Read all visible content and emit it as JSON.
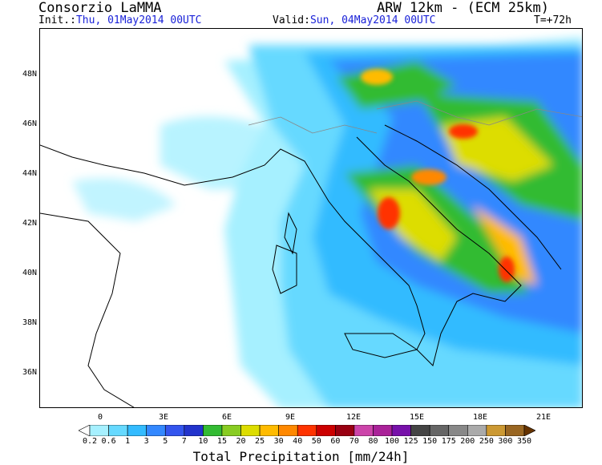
{
  "header": {
    "left_title": "Consorzio LaMMA",
    "right_title": "ARW 12km - (ECM 25km)",
    "init_label": "Init.:",
    "init_value": "Thu, 01May2014 00UTC",
    "valid_label": "Valid:",
    "valid_value": "Sun, 04May2014 00UTC",
    "forecast_step": "T=+72h"
  },
  "map": {
    "lat_labels": [
      "48N",
      "46N",
      "44N",
      "42N",
      "40N",
      "38N",
      "36N"
    ],
    "lon_labels": [
      "0",
      "3E",
      "6E",
      "9E",
      "12E",
      "15E",
      "18E",
      "21E"
    ],
    "field": "Total Precipitation"
  },
  "colorbar": {
    "title": "Total Precipitation [mm/24h]",
    "levels": [
      "0.2",
      "0.6",
      "1",
      "3",
      "5",
      "7",
      "10",
      "15",
      "20",
      "25",
      "30",
      "40",
      "50",
      "60",
      "70",
      "80",
      "100",
      "125",
      "150",
      "175",
      "200",
      "250",
      "300",
      "350"
    ],
    "colors": [
      "#ffffff",
      "#a6f0ff",
      "#66d9ff",
      "#33bbff",
      "#3388ff",
      "#3355ee",
      "#2233cc",
      "#33bb33",
      "#88cc22",
      "#dddd00",
      "#ffbb00",
      "#ff8800",
      "#ff3300",
      "#cc0000",
      "#990011",
      "#cc44aa",
      "#aa2299",
      "#7711aa",
      "#444444",
      "#666666",
      "#888888",
      "#aaaaaa",
      "#cc9933",
      "#996622",
      "#663300"
    ]
  }
}
